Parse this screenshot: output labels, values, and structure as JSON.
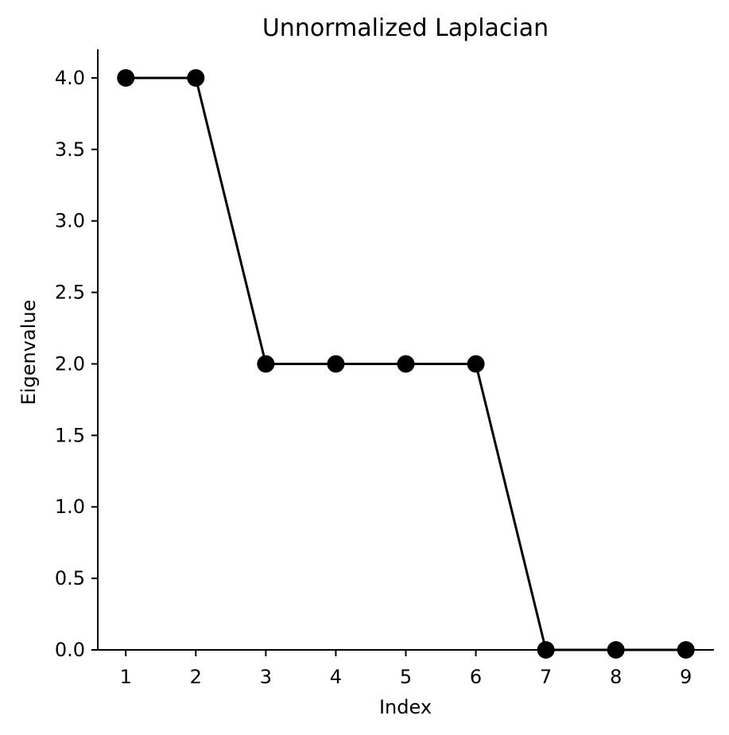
{
  "chart_data": {
    "type": "line",
    "title": "Unnormalized Laplacian",
    "xlabel": "Index",
    "ylabel": "Eigenvalue",
    "x": [
      1,
      2,
      3,
      4,
      5,
      6,
      7,
      8,
      9
    ],
    "series": [
      {
        "values": [
          4.0,
          4.0,
          2.0,
          2.0,
          2.0,
          2.0,
          0.0,
          0.0,
          0.0
        ]
      }
    ],
    "xticks": [
      "1",
      "2",
      "3",
      "4",
      "5",
      "6",
      "7",
      "8",
      "9"
    ],
    "yticks": [
      "0.0",
      "0.5",
      "1.0",
      "1.5",
      "2.0",
      "2.5",
      "3.0",
      "3.5",
      "4.0"
    ],
    "xlim": [
      0.6,
      9.4
    ],
    "ylim": [
      0.0,
      4.2
    ],
    "grid": false,
    "marker": "circle",
    "color": "#000000"
  }
}
